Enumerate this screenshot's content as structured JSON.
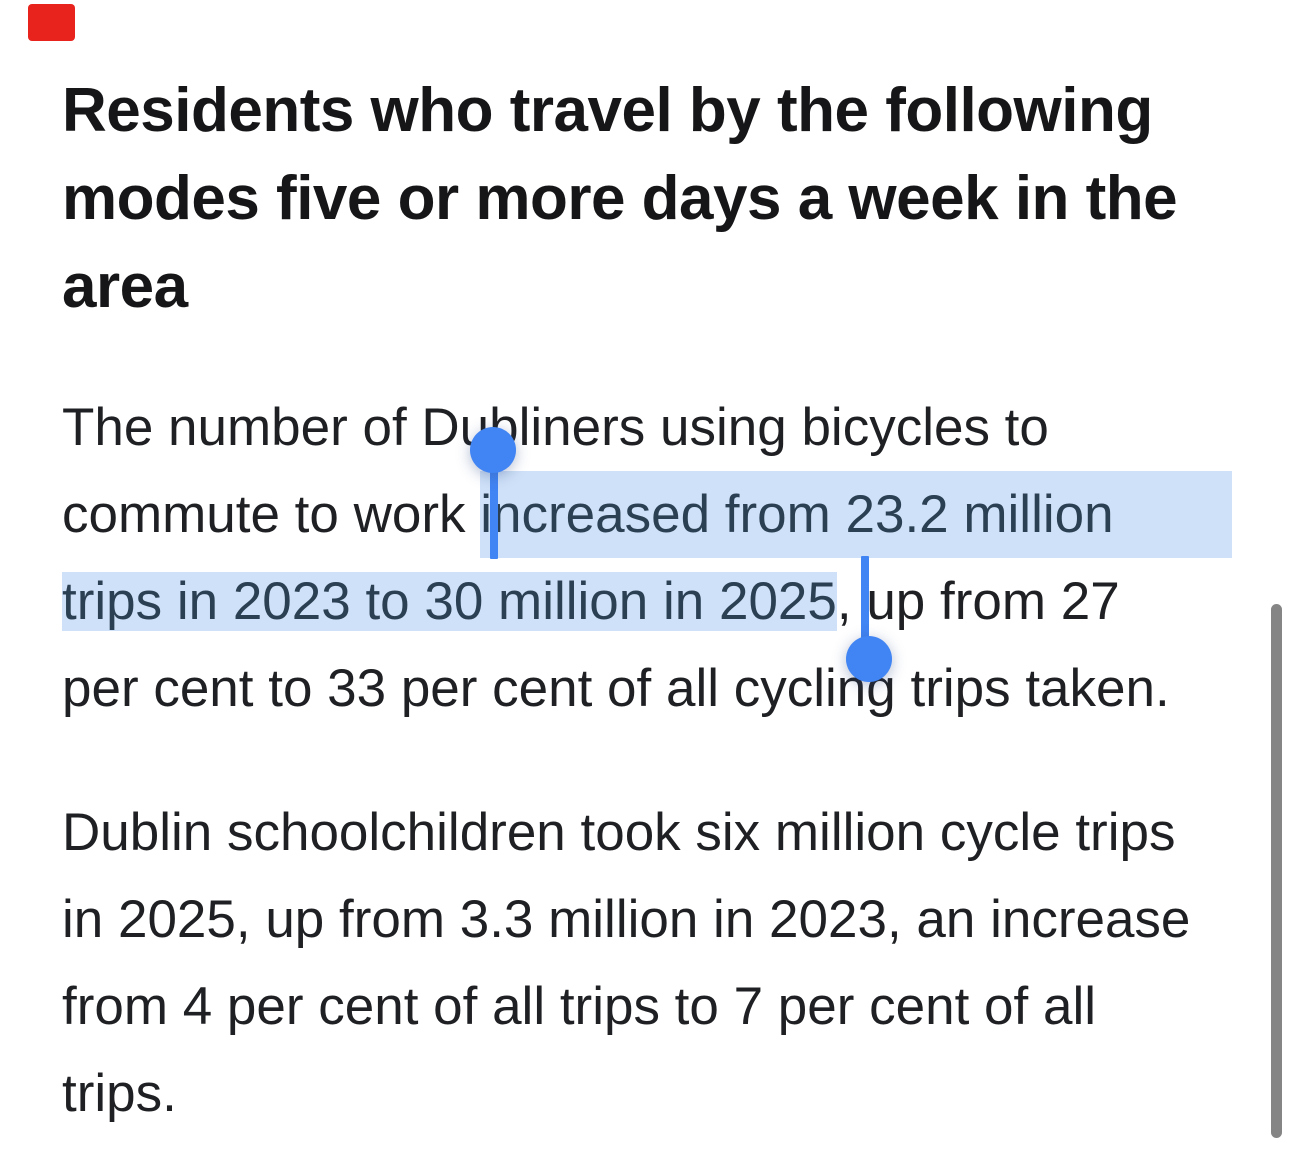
{
  "marker": {
    "color": "#e8231d"
  },
  "article": {
    "heading": {
      "lines": [
        "Residents who travel by the following",
        "modes five or more days a week in the",
        "area"
      ]
    },
    "p1": {
      "lines": [
        {
          "pre": "The number of Dubliners using bicycles to",
          "hl": "",
          "post": ""
        },
        {
          "pre": "commute to work ",
          "hl": "increased from 23.2 million",
          "post": ""
        },
        {
          "pre": "",
          "hl": "trips in 2023 to 30 million in 2025",
          "post": ", up from 27"
        },
        {
          "pre": "per cent to 33 per cent of all cycling trips taken.",
          "hl": "",
          "post": ""
        }
      ]
    },
    "p2": {
      "lines": [
        "Dublin schoolchildren took six million cycle trips",
        "in 2025, up from 3.3 million in 2023, an increase",
        "from 4 per cent of all trips to 7 per cent of all",
        "trips."
      ]
    }
  },
  "selection": {
    "selected_text": "increased from 23.2 million trips in 2023 to 30 million in 2025",
    "highlight_color": "#cfe1f8",
    "selected_text_color": "#2b4053",
    "handle_color": "#4184f3"
  },
  "scrollbar": {
    "color": "#858585"
  }
}
